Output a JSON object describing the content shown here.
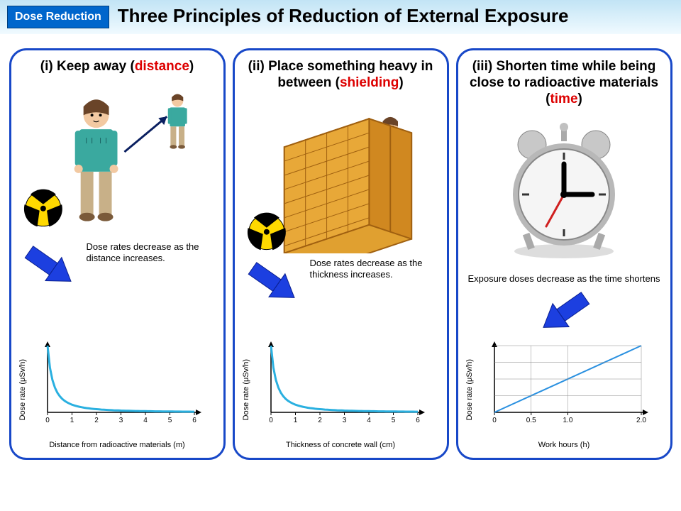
{
  "header": {
    "badge": "Dose Reduction",
    "title": "Three Principles of Reduction of External Exposure"
  },
  "colors": {
    "panel_border": "#1848c8",
    "arrow_fill": "#1c3fe0",
    "arrow_stroke": "#0a1f8f",
    "curve": "#2ab0e0",
    "line": "#2a90e0",
    "axis": "#000",
    "grid": "#888",
    "rad_yellow": "#ffd900",
    "wall": "#e0a030",
    "wall_edge": "#a06010",
    "shirt": "#3aa99f",
    "pants": "#c8b088",
    "skin": "#f2c9a2",
    "hair": "#6a4428",
    "clock_face": "#f2f2f2",
    "clock_rim": "#b0b0b0",
    "clock_red": "#d02020"
  },
  "panels": [
    {
      "title_prefix": "(i) Keep away (",
      "keyword": "distance",
      "title_suffix": ")",
      "caption": "Dose rates decrease as the distance increases.",
      "chart": {
        "type": "curve-decay",
        "ylabel": "Dose rate (μSv/h)",
        "xlabel": "Distance from radioactive materials (m)",
        "xticks": [
          "0",
          "1",
          "2",
          "3",
          "4",
          "5",
          "6"
        ],
        "xlim": [
          0,
          6
        ],
        "ylim": [
          0,
          1
        ],
        "line_width": 3
      },
      "arrow_dir": "down-right"
    },
    {
      "title_prefix": "(ii) Place something heavy in between (",
      "keyword": "shielding",
      "title_suffix": ")",
      "caption": "Dose rates decrease as the thickness increases.",
      "chart": {
        "type": "curve-decay",
        "ylabel": "Dose rate (μSv/h)",
        "xlabel": "Thickness of concrete wall (cm)",
        "xticks": [
          "0",
          "1",
          "2",
          "3",
          "4",
          "5",
          "6"
        ],
        "xlim": [
          0,
          6
        ],
        "ylim": [
          0,
          1
        ],
        "line_width": 3
      },
      "arrow_dir": "down-right"
    },
    {
      "title_prefix": "(iii) Shorten time while being close to radioactive materials (",
      "keyword": "time",
      "title_suffix": ")",
      "caption": "Exposure doses decrease as the time shortens",
      "chart": {
        "type": "line-up",
        "ylabel": "Dose rate (μSv/h)",
        "xlabel": "Work hours (h)",
        "xticks": [
          "0",
          "0.5",
          "1.0",
          "2.0"
        ],
        "xtick_pos": [
          0,
          0.5,
          1.0,
          2.0
        ],
        "xlim": [
          0,
          2
        ],
        "ylim": [
          0,
          1
        ],
        "line_width": 2
      },
      "arrow_dir": "down-left"
    }
  ]
}
